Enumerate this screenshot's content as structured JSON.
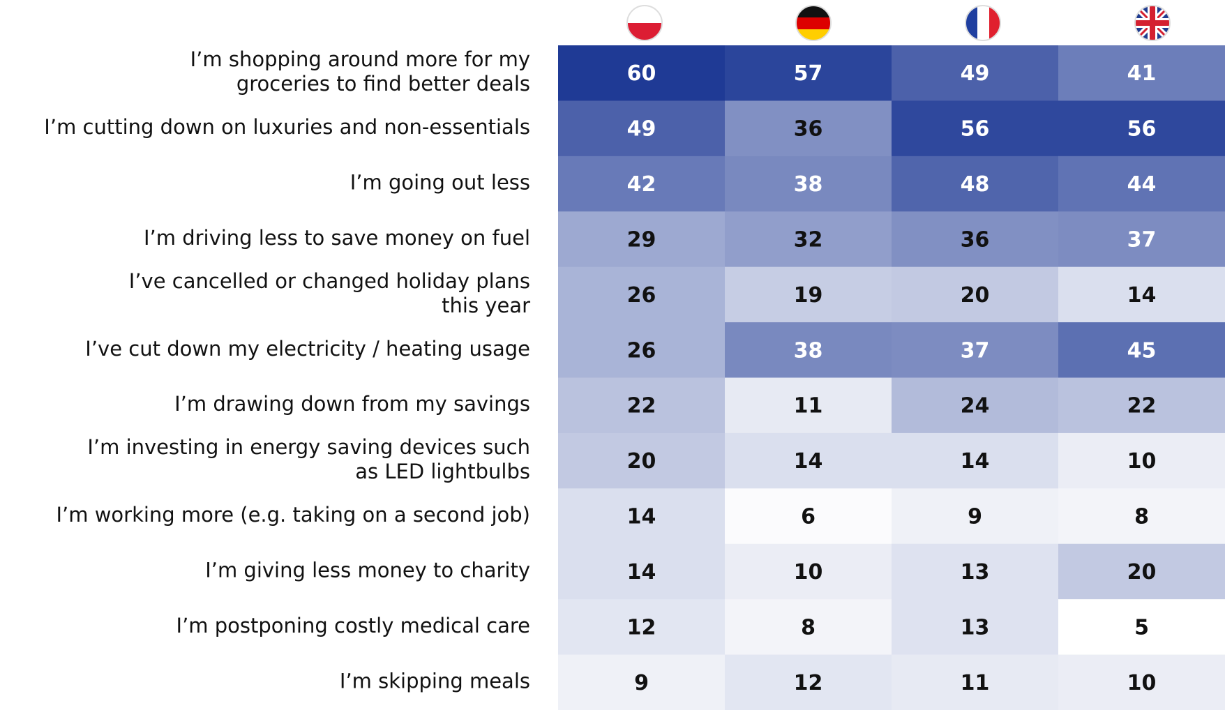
{
  "chart_data": {
    "type": "heatmap",
    "row_labels": [
      [
        "I’m shopping around more for my",
        "groceries to find better deals"
      ],
      [
        "I’m cutting down on luxuries and non-essentials"
      ],
      [
        "I’m going out less"
      ],
      [
        "I’m driving less to save money on fuel"
      ],
      [
        "I’ve cancelled or changed holiday plans",
        "this year"
      ],
      [
        "I’ve cut down my electricity / heating usage"
      ],
      [
        "I’m drawing down from my savings"
      ],
      [
        "I’m investing in energy saving devices such",
        "as LED lightbulbs"
      ],
      [
        "I’m working more (e.g. taking on a second job)"
      ],
      [
        "I’m giving less money to charity"
      ],
      [
        "I’m postponing costly medical care"
      ],
      [
        "I’m skipping meals"
      ]
    ],
    "values": [
      [
        60,
        57,
        49,
        41
      ],
      [
        49,
        36,
        56,
        56
      ],
      [
        42,
        38,
        48,
        44
      ],
      [
        29,
        32,
        36,
        37
      ],
      [
        26,
        19,
        20,
        14
      ],
      [
        26,
        38,
        37,
        45
      ],
      [
        22,
        11,
        24,
        22
      ],
      [
        20,
        14,
        14,
        10
      ],
      [
        14,
        6,
        9,
        8
      ],
      [
        14,
        10,
        13,
        20
      ],
      [
        12,
        8,
        13,
        5
      ],
      [
        9,
        12,
        11,
        10
      ]
    ],
    "color_scale": [
      "#ffffff",
      "#1f3a95"
    ]
  }
}
